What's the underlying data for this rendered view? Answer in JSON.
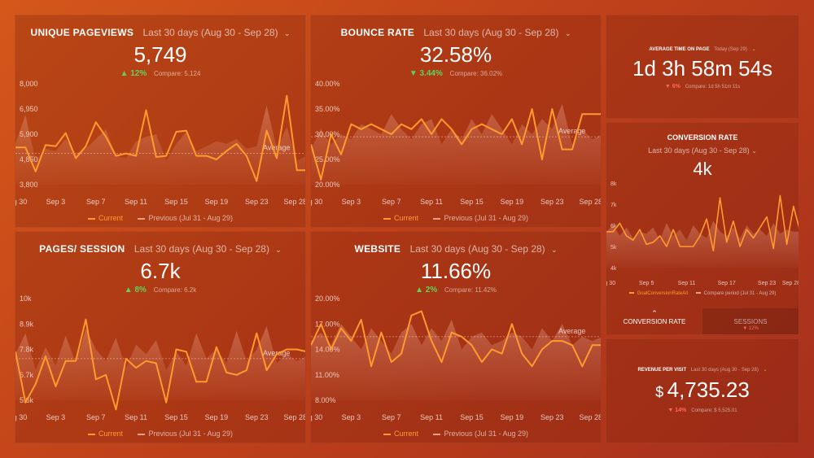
{
  "cards": [
    {
      "id": "unique-pageviews",
      "title": "UNIQUE PAGEVIEWS",
      "period": "Last 30 days (Aug 30 - Sep 28)",
      "value": "5,749",
      "direction": "up",
      "change": "12%",
      "compare": "Compare: 5,124",
      "legend_current": "Current",
      "legend_previous": "Previous (Jul 31 - Aug 29)",
      "average_label": "Average"
    },
    {
      "id": "bounce-rate",
      "title": "BOUNCE RATE",
      "period": "Last 30 days (Aug 30 - Sep 28)",
      "value": "32.58%",
      "direction": "down",
      "change": "3.44%",
      "compare": "Compare: 36.02%",
      "legend_current": "Current",
      "legend_previous": "Previous (Jul 31 - Aug 29)",
      "average_label": "Average"
    },
    {
      "id": "pages-session",
      "title": "PAGES/ SESSION",
      "period": "Last 30 days (Aug 30 - Sep 28)",
      "value": "6.7k",
      "direction": "up",
      "change": "8%",
      "compare": "Compare: 6.2k",
      "legend_current": "Current",
      "legend_previous": "Previous (Jul 31 - Aug 29)",
      "average_label": "Average"
    },
    {
      "id": "website",
      "title": "WEBSITE",
      "period": "Last 30 days (Aug 30 - Sep 28)",
      "value": "11.66%",
      "direction": "up",
      "change": "2%",
      "compare": "Compare: 11.42%",
      "legend_current": "Current",
      "legend_previous": "Previous (Jul 31 - Aug 29)",
      "average_label": "Average"
    }
  ],
  "avg_time": {
    "title": "AVERAGE TIME ON PAGE",
    "period": "Today (Sep 29)",
    "value": "1d 3h 58m 54s",
    "direction": "down",
    "change": "6%",
    "compare": "Compare: 1d 5h 51m 11s"
  },
  "conversion": {
    "title": "CONVERSION RATE",
    "period": "Last 30 days (Aug 30 - Sep 28)",
    "value": "4k",
    "legend_current": "GoalConversionRateAll",
    "legend_previous": "Compare period (Jul 31 - Aug 29)",
    "tab_active": "CONVERSION RATE",
    "tab_inactive": "SESSIONS",
    "tab_inactive_change": "▼ 12%"
  },
  "revenue": {
    "title": "REVENUE PER VISIT",
    "period": "Last 30 days (Aug 30 - Sep 28)",
    "currency": "$",
    "value": "4,735.23",
    "direction": "down",
    "change": "14%",
    "compare": "Compare: $ 5,525.01"
  },
  "colors": {
    "current": "#ff9a2e",
    "previous": "#e8a08a",
    "up": "#5fd35a",
    "down": "#ff6a5e"
  },
  "chart_data": [
    {
      "type": "line",
      "name": "unique-pageviews-chart",
      "x": [
        "Aug 30",
        "Aug 31",
        "Sep 1",
        "Sep 2",
        "Sep 3",
        "Sep 4",
        "Sep 5",
        "Sep 6",
        "Sep 7",
        "Sep 8",
        "Sep 9",
        "Sep 10",
        "Sep 11",
        "Sep 12",
        "Sep 13",
        "Sep 14",
        "Sep 15",
        "Sep 16",
        "Sep 17",
        "Sep 18",
        "Sep 19",
        "Sep 20",
        "Sep 21",
        "Sep 22",
        "Sep 23",
        "Sep 24",
        "Sep 25",
        "Sep 26",
        "Sep 27",
        "Sep 28"
      ],
      "xticks": [
        "Aug 30",
        "Sep 3",
        "Sep 7",
        "Sep 11",
        "Sep 15",
        "Sep 19",
        "Sep 23",
        "Sep 28"
      ],
      "yticks": [
        "8,000",
        "6,950",
        "5,900",
        "4,850",
        "3,800"
      ],
      "ylim": [
        3800,
        8000
      ],
      "average": 5100,
      "series": [
        {
          "name": "Current",
          "values": [
            5350,
            5350,
            4350,
            5450,
            5400,
            5950,
            4900,
            5400,
            6400,
            5800,
            5000,
            5100,
            5000,
            6900,
            4950,
            5000,
            6000,
            6050,
            5000,
            5000,
            4850,
            5200,
            5500,
            5000,
            3950,
            6050,
            4900,
            7500,
            4400,
            4400
          ]
        },
        {
          "name": "Previous (Jul 31 - Aug 29)",
          "values": [
            5500,
            6700,
            4800,
            5300,
            5200,
            5700,
            5100,
            5300,
            5700,
            6100,
            5000,
            4900,
            5600,
            5800,
            5900,
            4800,
            5500,
            6000,
            5200,
            5400,
            5600,
            5500,
            5700,
            5300,
            5400,
            7100,
            5300,
            6200,
            4800,
            5000
          ]
        }
      ]
    },
    {
      "type": "line",
      "name": "bounce-rate-chart",
      "x": [
        "Aug 30",
        "Aug 31",
        "Sep 1",
        "Sep 2",
        "Sep 3",
        "Sep 4",
        "Sep 5",
        "Sep 6",
        "Sep 7",
        "Sep 8",
        "Sep 9",
        "Sep 10",
        "Sep 11",
        "Sep 12",
        "Sep 13",
        "Sep 14",
        "Sep 15",
        "Sep 16",
        "Sep 17",
        "Sep 18",
        "Sep 19",
        "Sep 20",
        "Sep 21",
        "Sep 22",
        "Sep 23",
        "Sep 24",
        "Sep 25",
        "Sep 26",
        "Sep 27",
        "Sep 28"
      ],
      "xticks": [
        "Aug 30",
        "Sep 3",
        "Sep 7",
        "Sep 11",
        "Sep 15",
        "Sep 19",
        "Sep 23",
        "Sep 28"
      ],
      "yticks": [
        "40.00%",
        "35.00%",
        "30.00%",
        "25.00%",
        "20.00%"
      ],
      "ylim": [
        20,
        40
      ],
      "average": 29.5,
      "series": [
        {
          "name": "Current",
          "values": [
            28,
            21,
            30,
            26,
            32,
            31,
            32,
            31,
            30,
            32,
            31,
            33,
            30,
            33,
            31,
            28,
            31,
            32,
            31,
            30,
            33,
            28,
            35,
            25,
            35,
            27,
            27,
            34,
            34,
            34
          ]
        },
        {
          "name": "Previous (Jul 31 - Aug 29)",
          "values": [
            27,
            31,
            28,
            30,
            29,
            32,
            31,
            30,
            34,
            31,
            29,
            32,
            33,
            28,
            31,
            29,
            33,
            30,
            34,
            31,
            28,
            32,
            30,
            33,
            31,
            36,
            28,
            31,
            29,
            30
          ]
        }
      ]
    },
    {
      "type": "line",
      "name": "pages-session-chart",
      "x": [
        "Aug 30",
        "Aug 31",
        "Sep 1",
        "Sep 2",
        "Sep 3",
        "Sep 4",
        "Sep 5",
        "Sep 6",
        "Sep 7",
        "Sep 8",
        "Sep 9",
        "Sep 10",
        "Sep 11",
        "Sep 12",
        "Sep 13",
        "Sep 14",
        "Sep 15",
        "Sep 16",
        "Sep 17",
        "Sep 18",
        "Sep 19",
        "Sep 20",
        "Sep 21",
        "Sep 22",
        "Sep 23",
        "Sep 24",
        "Sep 25",
        "Sep 26",
        "Sep 27",
        "Sep 28"
      ],
      "xticks": [
        "Aug 30",
        "Sep 3",
        "Sep 7",
        "Sep 11",
        "Sep 15",
        "Sep 19",
        "Sep 23",
        "Sep 28"
      ],
      "yticks": [
        "10k",
        "8.9k",
        "7.8k",
        "6.7k",
        "5.6k"
      ],
      "ylim": [
        5600,
        10000
      ],
      "average": 7400,
      "series": [
        {
          "name": "Current",
          "values": [
            7700,
            5500,
            6300,
            7500,
            6200,
            7300,
            7300,
            9100,
            6500,
            6700,
            5200,
            7400,
            7000,
            7300,
            7200,
            5500,
            7800,
            7700,
            6400,
            6400,
            7900,
            6800,
            6700,
            6900,
            8500,
            6900,
            7600,
            7800,
            7800,
            7700
          ]
        },
        {
          "name": "Previous (Jul 31 - Aug 29)",
          "values": [
            7600,
            8500,
            6900,
            7900,
            7100,
            8400,
            7200,
            8700,
            7800,
            7300,
            8300,
            7000,
            8000,
            7600,
            8200,
            6900,
            7700,
            7100,
            8500,
            7400,
            7800,
            7200,
            8600,
            7300,
            7800,
            8800,
            7200,
            7600,
            7300,
            7500
          ]
        }
      ]
    },
    {
      "type": "line",
      "name": "website-chart",
      "x": [
        "Aug 30",
        "Aug 31",
        "Sep 1",
        "Sep 2",
        "Sep 3",
        "Sep 4",
        "Sep 5",
        "Sep 6",
        "Sep 7",
        "Sep 8",
        "Sep 9",
        "Sep 10",
        "Sep 11",
        "Sep 12",
        "Sep 13",
        "Sep 14",
        "Sep 15",
        "Sep 16",
        "Sep 17",
        "Sep 18",
        "Sep 19",
        "Sep 20",
        "Sep 21",
        "Sep 22",
        "Sep 23",
        "Sep 24",
        "Sep 25",
        "Sep 26",
        "Sep 27",
        "Sep 28"
      ],
      "xticks": [
        "Aug 30",
        "Sep 3",
        "Sep 7",
        "Sep 11",
        "Sep 15",
        "Sep 19",
        "Sep 23",
        "Sep 28"
      ],
      "yticks": [
        "20.00%",
        "17.00%",
        "14.00%",
        "11.00%",
        "8.00%"
      ],
      "ylim": [
        8,
        20
      ],
      "average": 15.5,
      "series": [
        {
          "name": "Current",
          "values": [
            14.5,
            17,
            14,
            16.5,
            15,
            17.5,
            12,
            16,
            12.5,
            13.5,
            18,
            18.5,
            15,
            12.5,
            16,
            15.5,
            14.5,
            12.5,
            14,
            13.5,
            17,
            13.5,
            12,
            14,
            15,
            15,
            14.5,
            12,
            14.5,
            14.5
          ]
        },
        {
          "name": "Previous (Jul 31 - Aug 29)",
          "values": [
            15,
            16,
            14.5,
            17,
            15.5,
            14,
            16.5,
            15,
            13.5,
            16,
            17,
            14.5,
            16.5,
            15,
            17.5,
            14,
            15.5,
            16,
            14.5,
            15,
            16,
            15.5,
            14,
            16.5,
            15,
            17,
            14.5,
            15.5,
            15,
            15.5
          ]
        }
      ]
    },
    {
      "type": "line",
      "name": "conversion-rate-chart",
      "x": [
        "Aug 30",
        "Aug 31",
        "Sep 1",
        "Sep 2",
        "Sep 3",
        "Sep 4",
        "Sep 5",
        "Sep 6",
        "Sep 7",
        "Sep 8",
        "Sep 9",
        "Sep 10",
        "Sep 11",
        "Sep 12",
        "Sep 13",
        "Sep 14",
        "Sep 15",
        "Sep 16",
        "Sep 17",
        "Sep 18",
        "Sep 19",
        "Sep 20",
        "Sep 21",
        "Sep 22",
        "Sep 23",
        "Sep 24",
        "Sep 25",
        "Sep 26",
        "Sep 27",
        "Sep 28"
      ],
      "xticks": [
        "Aug 30",
        "Sep 5",
        "Sep 11",
        "Sep 17",
        "Sep 23",
        "Sep 28"
      ],
      "yticks": [
        "8k",
        "7k",
        "6k",
        "5k",
        "4k"
      ],
      "ylim": [
        4000,
        8000
      ],
      "series": [
        {
          "name": "GoalConversionRateAll",
          "values": [
            5700,
            5700,
            6100,
            5500,
            5300,
            5800,
            5100,
            5200,
            5500,
            5000,
            5800,
            5000,
            5000,
            5000,
            5500,
            6300,
            4800,
            7300,
            5200,
            6200,
            5000,
            5800,
            5400,
            5900,
            6400,
            4900,
            7400,
            5100,
            6900,
            5700
          ]
        },
        {
          "name": "Compare period (Jul 31 - Aug 29)",
          "values": [
            5700,
            6000,
            5500,
            5900,
            5400,
            5700,
            5600,
            5900,
            5300,
            6100,
            5500,
            5800,
            5300,
            6000,
            5600,
            5400,
            6200,
            5700,
            5500,
            5900,
            5400,
            6000,
            5600,
            5800,
            5500,
            6100,
            5600,
            5800,
            5700,
            5700
          ]
        }
      ]
    }
  ]
}
